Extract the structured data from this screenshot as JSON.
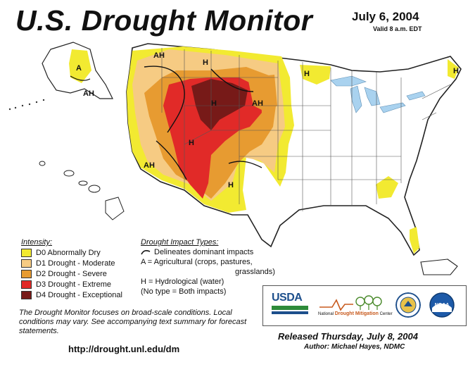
{
  "header": {
    "title": "U.S. Drought Monitor",
    "date": "July 6, 2004",
    "valid": "Valid 8 a.m. EDT"
  },
  "colors": {
    "D0": "#f2ea31",
    "D1": "#f6cb83",
    "D2": "#e79b31",
    "D3": "#e12a28",
    "D4": "#771a18",
    "water": "#a9d2ef",
    "state_border": "#555555"
  },
  "legend": {
    "title": "Intensity:",
    "items": [
      {
        "key": "D0",
        "label": "D0 Abnormally Dry"
      },
      {
        "key": "D1",
        "label": "D1 Drought - Moderate"
      },
      {
        "key": "D2",
        "label": "D2 Drought - Severe"
      },
      {
        "key": "D3",
        "label": "D3 Drought - Extreme"
      },
      {
        "key": "D4",
        "label": "D4 Drought - Exceptional"
      }
    ]
  },
  "impacts": {
    "title": "Drought Impact Types:",
    "line1": "Delineates dominant impacts",
    "line2": "A = Agricultural (crops, pastures,",
    "line3": "grasslands)",
    "line4": "H = Hydrological (water)",
    "line5": "(No type = Both impacts)"
  },
  "map_labels": {
    "alaska_a": "A",
    "alaska_ah": "AH",
    "northwest_ah": "AH",
    "montana_h": "H",
    "wyoming_h": "H",
    "dakota_ah": "AH",
    "great_lakes_h": "H",
    "maine_h": "H",
    "utah_h": "H",
    "california_ah": "AH",
    "texas_h": "H"
  },
  "note": "The Drought Monitor focuses on broad-scale conditions. Local conditions may vary.  See accompanying text summary for forecast statements.",
  "url": "http://drought.unl.edu/dm",
  "logos": {
    "usda": "USDA",
    "ndmc_prefix": "National",
    "ndmc_main": "Drought Mitigation",
    "ndmc_suffix": "Center"
  },
  "released": "Released Thursday, July 8, 2004",
  "author": "Author: Michael Hayes, NDMC"
}
